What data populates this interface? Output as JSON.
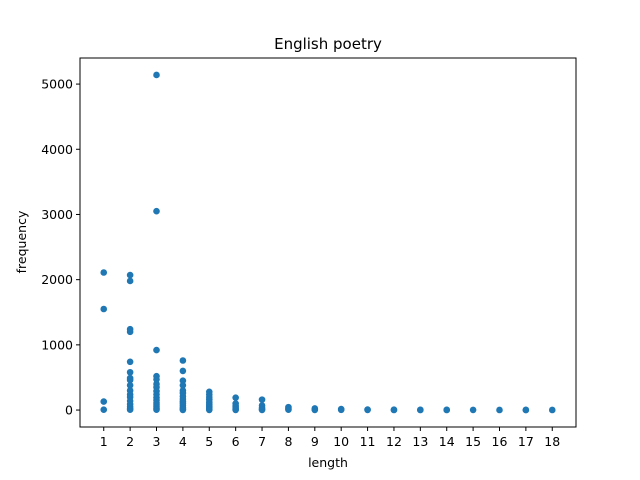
{
  "chart_data": {
    "type": "scatter",
    "title": "English poetry",
    "xlabel": "length",
    "ylabel": "frequency",
    "xlim": [
      0.1,
      18.9
    ],
    "ylim": [
      -260,
      5400
    ],
    "xticks": [
      1,
      2,
      3,
      4,
      5,
      6,
      7,
      8,
      9,
      10,
      11,
      12,
      13,
      14,
      15,
      16,
      17,
      18
    ],
    "yticks": [
      0,
      1000,
      2000,
      3000,
      4000,
      5000
    ],
    "color": "#1f77b4",
    "grid": false,
    "points": [
      {
        "x": 1,
        "y": 2110
      },
      {
        "x": 1,
        "y": 1550
      },
      {
        "x": 1,
        "y": 130
      },
      {
        "x": 1,
        "y": 5
      },
      {
        "x": 2,
        "y": 2070
      },
      {
        "x": 2,
        "y": 1980
      },
      {
        "x": 2,
        "y": 1240
      },
      {
        "x": 2,
        "y": 1200
      },
      {
        "x": 2,
        "y": 740
      },
      {
        "x": 2,
        "y": 580
      },
      {
        "x": 2,
        "y": 490
      },
      {
        "x": 2,
        "y": 460
      },
      {
        "x": 2,
        "y": 380
      },
      {
        "x": 2,
        "y": 300
      },
      {
        "x": 2,
        "y": 240
      },
      {
        "x": 2,
        "y": 200
      },
      {
        "x": 2,
        "y": 140
      },
      {
        "x": 2,
        "y": 90
      },
      {
        "x": 2,
        "y": 50
      },
      {
        "x": 2,
        "y": 20
      },
      {
        "x": 2,
        "y": 5
      },
      {
        "x": 3,
        "y": 5140
      },
      {
        "x": 3,
        "y": 3050
      },
      {
        "x": 3,
        "y": 920
      },
      {
        "x": 3,
        "y": 520
      },
      {
        "x": 3,
        "y": 470
      },
      {
        "x": 3,
        "y": 400
      },
      {
        "x": 3,
        "y": 350
      },
      {
        "x": 3,
        "y": 290
      },
      {
        "x": 3,
        "y": 240
      },
      {
        "x": 3,
        "y": 190
      },
      {
        "x": 3,
        "y": 150
      },
      {
        "x": 3,
        "y": 110
      },
      {
        "x": 3,
        "y": 80
      },
      {
        "x": 3,
        "y": 50
      },
      {
        "x": 3,
        "y": 25
      },
      {
        "x": 3,
        "y": 5
      },
      {
        "x": 4,
        "y": 760
      },
      {
        "x": 4,
        "y": 600
      },
      {
        "x": 4,
        "y": 450
      },
      {
        "x": 4,
        "y": 380
      },
      {
        "x": 4,
        "y": 300
      },
      {
        "x": 4,
        "y": 260
      },
      {
        "x": 4,
        "y": 210
      },
      {
        "x": 4,
        "y": 170
      },
      {
        "x": 4,
        "y": 130
      },
      {
        "x": 4,
        "y": 100
      },
      {
        "x": 4,
        "y": 70
      },
      {
        "x": 4,
        "y": 40
      },
      {
        "x": 4,
        "y": 15
      },
      {
        "x": 4,
        "y": 2
      },
      {
        "x": 5,
        "y": 280
      },
      {
        "x": 5,
        "y": 240
      },
      {
        "x": 5,
        "y": 200
      },
      {
        "x": 5,
        "y": 160
      },
      {
        "x": 5,
        "y": 120
      },
      {
        "x": 5,
        "y": 90
      },
      {
        "x": 5,
        "y": 60
      },
      {
        "x": 5,
        "y": 35
      },
      {
        "x": 5,
        "y": 15
      },
      {
        "x": 5,
        "y": 2
      },
      {
        "x": 6,
        "y": 190
      },
      {
        "x": 6,
        "y": 100
      },
      {
        "x": 6,
        "y": 60
      },
      {
        "x": 6,
        "y": 30
      },
      {
        "x": 6,
        "y": 10
      },
      {
        "x": 6,
        "y": 2
      },
      {
        "x": 7,
        "y": 160
      },
      {
        "x": 7,
        "y": 70
      },
      {
        "x": 7,
        "y": 30
      },
      {
        "x": 7,
        "y": 10
      },
      {
        "x": 7,
        "y": 2
      },
      {
        "x": 8,
        "y": 45
      },
      {
        "x": 8,
        "y": 20
      },
      {
        "x": 8,
        "y": 5
      },
      {
        "x": 9,
        "y": 25
      },
      {
        "x": 9,
        "y": 10
      },
      {
        "x": 9,
        "y": 2
      },
      {
        "x": 10,
        "y": 15
      },
      {
        "x": 10,
        "y": 3
      },
      {
        "x": 11,
        "y": 8
      },
      {
        "x": 11,
        "y": 2
      },
      {
        "x": 12,
        "y": 5
      },
      {
        "x": 12,
        "y": 1
      },
      {
        "x": 13,
        "y": 4
      },
      {
        "x": 13,
        "y": 1
      },
      {
        "x": 14,
        "y": 3
      },
      {
        "x": 14,
        "y": 1
      },
      {
        "x": 15,
        "y": 2
      },
      {
        "x": 16,
        "y": 1
      },
      {
        "x": 17,
        "y": 2
      },
      {
        "x": 17,
        "y": 1
      },
      {
        "x": 18,
        "y": 1
      }
    ]
  }
}
